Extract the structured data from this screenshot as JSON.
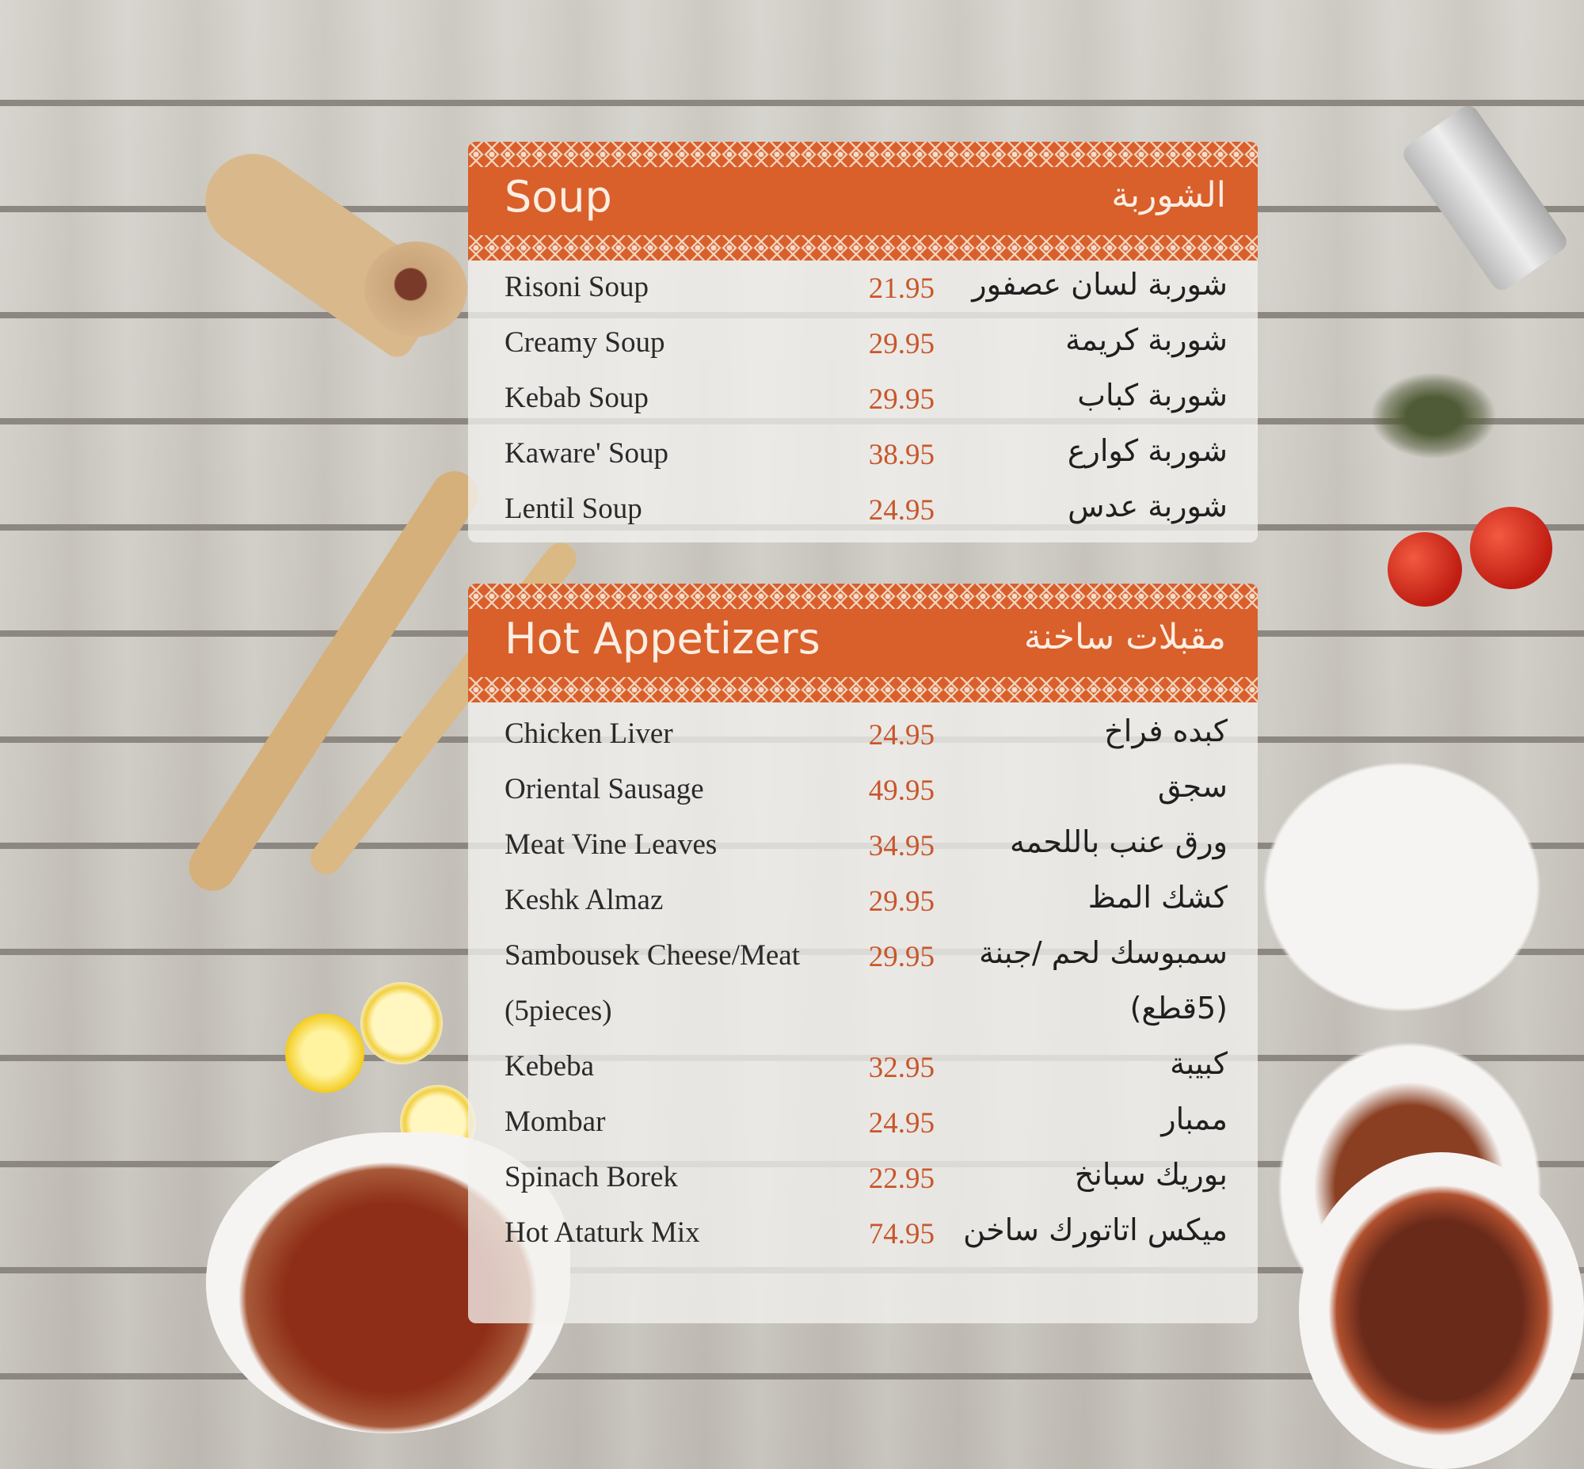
{
  "colors": {
    "header_orange": "#d95f2b",
    "price_orange": "#c8562a",
    "wood": "#c9c6c0"
  },
  "sections": [
    {
      "title_en": "Soup",
      "title_ar": "الشوربة",
      "items": [
        {
          "en": "Risoni Soup",
          "price": "21.95",
          "ar": "شوربة لسان عصفور"
        },
        {
          "en": "Creamy Soup",
          "price": "29.95",
          "ar": "شوربة كريمة"
        },
        {
          "en": "Kebab Soup",
          "price": "29.95",
          "ar": "شوربة كباب"
        },
        {
          "en": "Kaware' Soup",
          "price": "38.95",
          "ar": "شوربة كوارع"
        },
        {
          "en": "Lentil Soup",
          "price": "24.95",
          "ar": "شوربة عدس"
        }
      ]
    },
    {
      "title_en": "Hot Appetizers",
      "title_ar": "مقبلات ساخنة",
      "items": [
        {
          "en": "Chicken Liver",
          "price": "24.95",
          "ar": "كبده فراخ"
        },
        {
          "en": "Oriental Sausage",
          "price": "49.95",
          "ar": "سجق"
        },
        {
          "en": "Meat Vine Leaves",
          "price": "34.95",
          "ar": "ورق عنب باللحمه"
        },
        {
          "en": "Keshk Almaz",
          "price": "29.95",
          "ar": "كشك المظ"
        },
        {
          "en": "Sambousek Cheese/Meat",
          "price": "29.95",
          "ar": "سمبوسك لحم /جبنة"
        },
        {
          "en": "(5pieces)",
          "price": "",
          "ar": "(5قطع)"
        },
        {
          "en": "Kebeba",
          "price": "32.95",
          "ar": "كبيبة"
        },
        {
          "en": "Mombar",
          "price": "24.95",
          "ar": "ممبار"
        },
        {
          "en": "Spinach Borek",
          "price": "22.95",
          "ar": "بوريك سبانخ"
        },
        {
          "en": "Hot Ataturk Mix",
          "price": "74.95",
          "ar": "ميكس اتاتورك ساخن"
        }
      ]
    }
  ]
}
